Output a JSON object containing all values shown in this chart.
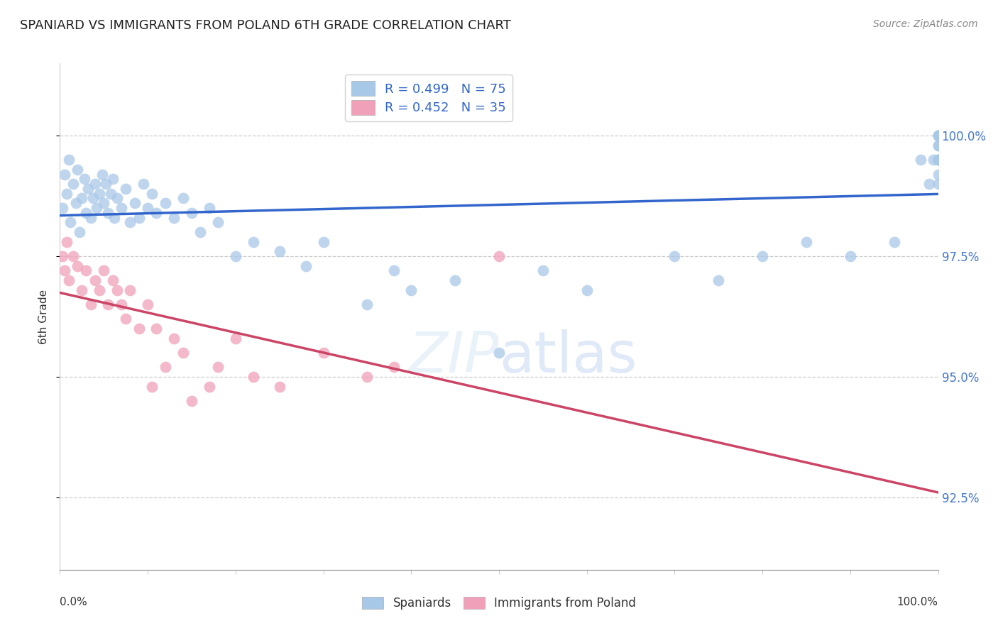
{
  "title": "SPANIARD VS IMMIGRANTS FROM POLAND 6TH GRADE CORRELATION CHART",
  "source": "Source: ZipAtlas.com",
  "ylabel": "6th Grade",
  "ytick_values": [
    92.5,
    95.0,
    97.5,
    100.0
  ],
  "legend_blue_label": "R = 0.499   N = 75",
  "legend_pink_label": "R = 0.452   N = 35",
  "legend_bottom_blue": "Spaniards",
  "legend_bottom_pink": "Immigrants from Poland",
  "blue_color": "#A8C8E8",
  "pink_color": "#F0A0B8",
  "blue_line_color": "#3366CC",
  "pink_line_color": "#CC4466",
  "grid_color": "#CCCCCC",
  "spaniards_x": [
    0.3,
    0.5,
    0.8,
    1.0,
    1.2,
    1.5,
    1.8,
    2.0,
    2.2,
    2.5,
    2.8,
    3.0,
    3.2,
    3.5,
    3.8,
    4.0,
    4.2,
    4.5,
    4.8,
    5.0,
    5.2,
    5.5,
    5.8,
    6.0,
    6.2,
    6.5,
    7.0,
    7.5,
    8.0,
    8.5,
    9.0,
    9.5,
    10.0,
    10.5,
    11.0,
    12.0,
    13.0,
    14.0,
    15.0,
    16.0,
    17.0,
    18.0,
    20.0,
    22.0,
    25.0,
    28.0,
    30.0,
    35.0,
    38.0,
    40.0,
    45.0,
    50.0,
    55.0,
    60.0,
    70.0,
    75.0,
    80.0,
    85.0,
    90.0,
    95.0,
    98.0,
    99.0,
    99.5,
    100.0,
    100.0,
    100.0,
    100.0,
    100.0,
    100.0,
    100.0,
    100.0,
    100.0,
    100.0,
    100.0,
    100.0
  ],
  "spaniards_y": [
    98.5,
    99.2,
    98.8,
    99.5,
    98.2,
    99.0,
    98.6,
    99.3,
    98.0,
    98.7,
    99.1,
    98.4,
    98.9,
    98.3,
    98.7,
    99.0,
    98.5,
    98.8,
    99.2,
    98.6,
    99.0,
    98.4,
    98.8,
    99.1,
    98.3,
    98.7,
    98.5,
    98.9,
    98.2,
    98.6,
    98.3,
    99.0,
    98.5,
    98.8,
    98.4,
    98.6,
    98.3,
    98.7,
    98.4,
    98.0,
    98.5,
    98.2,
    97.5,
    97.8,
    97.6,
    97.3,
    97.8,
    96.5,
    97.2,
    96.8,
    97.0,
    95.5,
    97.2,
    96.8,
    97.5,
    97.0,
    97.5,
    97.8,
    97.5,
    97.8,
    99.5,
    99.0,
    99.5,
    100.0,
    99.8,
    99.5,
    100.0,
    99.2,
    99.8,
    100.0,
    99.5,
    100.0,
    99.0,
    99.5,
    100.0
  ],
  "poland_x": [
    0.3,
    0.5,
    0.8,
    1.0,
    1.5,
    2.0,
    2.5,
    3.0,
    3.5,
    4.0,
    4.5,
    5.0,
    5.5,
    6.0,
    6.5,
    7.0,
    7.5,
    8.0,
    9.0,
    10.0,
    10.5,
    11.0,
    12.0,
    13.0,
    14.0,
    15.0,
    17.0,
    18.0,
    20.0,
    22.0,
    25.0,
    30.0,
    35.0,
    38.0,
    50.0
  ],
  "poland_y": [
    97.5,
    97.2,
    97.8,
    97.0,
    97.5,
    97.3,
    96.8,
    97.2,
    96.5,
    97.0,
    96.8,
    97.2,
    96.5,
    97.0,
    96.8,
    96.5,
    96.2,
    96.8,
    96.0,
    96.5,
    94.8,
    96.0,
    95.2,
    95.8,
    95.5,
    94.5,
    94.8,
    95.2,
    95.8,
    95.0,
    94.8,
    95.5,
    95.0,
    95.2,
    97.5
  ]
}
